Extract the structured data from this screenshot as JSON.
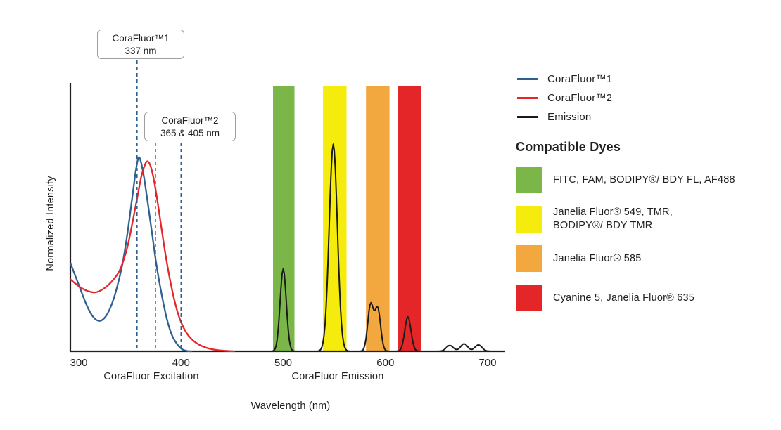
{
  "callouts": [
    {
      "title": "CoraFluor™1",
      "value": "337 nm"
    },
    {
      "title": "CoraFluor™2",
      "value": "365 & 405 nm"
    }
  ],
  "legend": {
    "items": [
      {
        "label": "CoraFluor™1",
        "color": "#2e6090"
      },
      {
        "label": "CoraFluor™2",
        "color": "#e52629"
      },
      {
        "label": "Emission",
        "color": "#1a1a1a"
      }
    ]
  },
  "compatible_dyes": {
    "heading": "Compatible Dyes",
    "items": [
      {
        "color": "#7ab648",
        "lines": [
          "FITC, FAM, BODIPY®/ BDY FL, AF488"
        ]
      },
      {
        "color": "#f5eb0c",
        "lines": [
          "Janelia Fluor® 549, TMR,",
          "BODIPY®/ BDY TMR"
        ]
      },
      {
        "color": "#f3a73f",
        "lines": [
          "Janelia Fluor® 585"
        ]
      },
      {
        "color": "#e52629",
        "lines": [
          "Cyanine 5, Janelia Fluor® 635"
        ]
      }
    ]
  },
  "chart_data": {
    "type": "line",
    "xlabel": "Wavelength (nm)",
    "ylabel": "Normalized Intensity",
    "x_ticks": [
      300,
      400,
      500,
      600,
      700
    ],
    "xlim": [
      292,
      717
    ],
    "ylim": [
      0,
      1
    ],
    "grid": false,
    "legend_position": "right",
    "axis_sections": [
      {
        "label": "CoraFluor Excitation"
      },
      {
        "label": "CoraFluor Emission"
      }
    ],
    "excitation_series": [
      {
        "name": "CoraFluor™1",
        "color": "#2e6090",
        "labeled_excitation_nm": "337 nm",
        "points": [
          [
            292,
            0.33
          ],
          [
            300,
            0.25
          ],
          [
            307,
            0.18
          ],
          [
            313,
            0.135
          ],
          [
            319,
            0.115
          ],
          [
            325,
            0.125
          ],
          [
            331,
            0.165
          ],
          [
            337,
            0.235
          ],
          [
            343,
            0.335
          ],
          [
            348,
            0.455
          ],
          [
            353,
            0.6
          ],
          [
            356,
            0.685
          ],
          [
            358.5,
            0.73
          ],
          [
            361,
            0.71
          ],
          [
            364,
            0.65
          ],
          [
            368,
            0.545
          ],
          [
            372,
            0.435
          ],
          [
            376,
            0.325
          ],
          [
            381,
            0.215
          ],
          [
            386,
            0.125
          ],
          [
            391,
            0.062
          ],
          [
            396,
            0.028
          ],
          [
            401,
            0.008
          ],
          [
            406,
            0.001
          ],
          [
            410,
            0
          ]
        ]
      },
      {
        "name": "CoraFluor™2",
        "color": "#e52629",
        "labeled_excitation_nm": "365 & 405 nm",
        "points": [
          [
            292,
            0.27
          ],
          [
            300,
            0.245
          ],
          [
            308,
            0.228
          ],
          [
            316,
            0.222
          ],
          [
            324,
            0.235
          ],
          [
            332,
            0.262
          ],
          [
            340,
            0.305
          ],
          [
            347,
            0.385
          ],
          [
            352,
            0.475
          ],
          [
            357,
            0.575
          ],
          [
            361,
            0.655
          ],
          [
            364.5,
            0.7
          ],
          [
            367,
            0.715
          ],
          [
            370,
            0.7
          ],
          [
            373,
            0.655
          ],
          [
            377,
            0.565
          ],
          [
            381,
            0.46
          ],
          [
            385,
            0.36
          ],
          [
            390,
            0.255
          ],
          [
            395,
            0.17
          ],
          [
            400,
            0.11
          ],
          [
            406,
            0.066
          ],
          [
            412,
            0.04
          ],
          [
            418,
            0.024
          ],
          [
            425,
            0.013
          ],
          [
            433,
            0.006
          ],
          [
            442,
            0.002
          ],
          [
            452,
            0
          ]
        ]
      }
    ],
    "emission_series": {
      "name": "Emission",
      "color": "#1a1a1a",
      "peaks": [
        {
          "center": 500,
          "sigma": 3,
          "height": 0.31
        },
        {
          "center": 549,
          "sigma": 4,
          "height": 0.78
        },
        {
          "center": 585.5,
          "sigma": 2.8,
          "height": 0.175
        },
        {
          "center": 592.5,
          "sigma": 2.8,
          "height": 0.16
        },
        {
          "center": 622,
          "sigma": 3,
          "height": 0.13
        },
        {
          "center": 663,
          "sigma": 3.5,
          "height": 0.022
        },
        {
          "center": 677,
          "sigma": 3.5,
          "height": 0.028
        },
        {
          "center": 691,
          "sigma": 3.5,
          "height": 0.024
        }
      ]
    },
    "filter_bands": [
      {
        "range_nm": [
          490,
          511
        ],
        "color": "#7ab648"
      },
      {
        "range_nm": [
          539,
          562
        ],
        "color": "#f5eb0c"
      },
      {
        "range_nm": [
          581,
          604
        ],
        "color": "#f3a73f"
      },
      {
        "range_nm": [
          612,
          635
        ],
        "color": "#e52629"
      }
    ],
    "dashed_markers_nm": [
      357,
      375,
      400
    ],
    "marker_color": "#2e6090"
  }
}
